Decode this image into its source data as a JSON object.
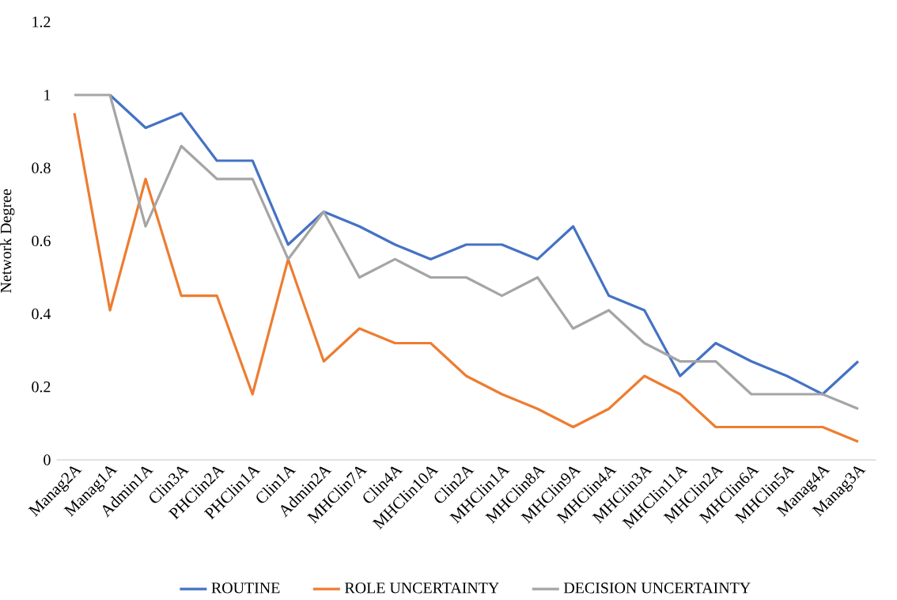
{
  "chart_data": {
    "type": "line",
    "ylabel": "Network Degree",
    "categories": [
      "Manag2A",
      "Manag1A",
      "Admin1A",
      "Clin3A",
      "PHClin2A",
      "PHClin1A",
      "Clin1A",
      "Admin2A",
      "MHClin7A",
      "Clin4A",
      "MHClin10A",
      "Clin2A",
      "MHClin1A",
      "MHClin8A",
      "MHClin9A",
      "MHClin4A",
      "MHClin3A",
      "MHClin11A",
      "MHClin2A",
      "MHClin6A",
      "MHClin5A",
      "Manag4A",
      "Manag3A"
    ],
    "series": [
      {
        "name": "ROUTINE",
        "color": "#4472c4",
        "values": [
          null,
          1.0,
          0.91,
          0.95,
          0.82,
          0.82,
          0.59,
          0.68,
          0.64,
          0.59,
          0.55,
          0.59,
          0.59,
          0.55,
          0.64,
          0.45,
          0.41,
          0.23,
          0.32,
          0.27,
          0.23,
          0.18,
          0.27
        ]
      },
      {
        "name": "ROLE UNCERTAINTY",
        "color": "#ed7d31",
        "values": [
          0.95,
          0.41,
          0.77,
          0.45,
          0.45,
          0.18,
          0.55,
          0.27,
          0.36,
          0.32,
          0.32,
          0.23,
          0.18,
          0.14,
          0.09,
          0.14,
          0.23,
          0.18,
          0.09,
          0.09,
          0.09,
          0.09,
          0.05
        ]
      },
      {
        "name": "DECISION UNCERTAINTY",
        "color": "#a5a5a5",
        "values": [
          1.0,
          1.0,
          0.64,
          0.86,
          0.77,
          0.77,
          0.55,
          0.68,
          0.5,
          0.55,
          0.5,
          0.5,
          0.45,
          0.5,
          0.36,
          0.41,
          0.32,
          0.27,
          0.27,
          0.18,
          0.18,
          0.18,
          0.14
        ]
      }
    ],
    "ylim": [
      0,
      1.2
    ],
    "yticks": [
      0,
      0.2,
      0.4,
      0.6,
      0.8,
      1,
      1.2
    ],
    "legend": "bottom",
    "marker": "none",
    "line_style": "solid"
  }
}
